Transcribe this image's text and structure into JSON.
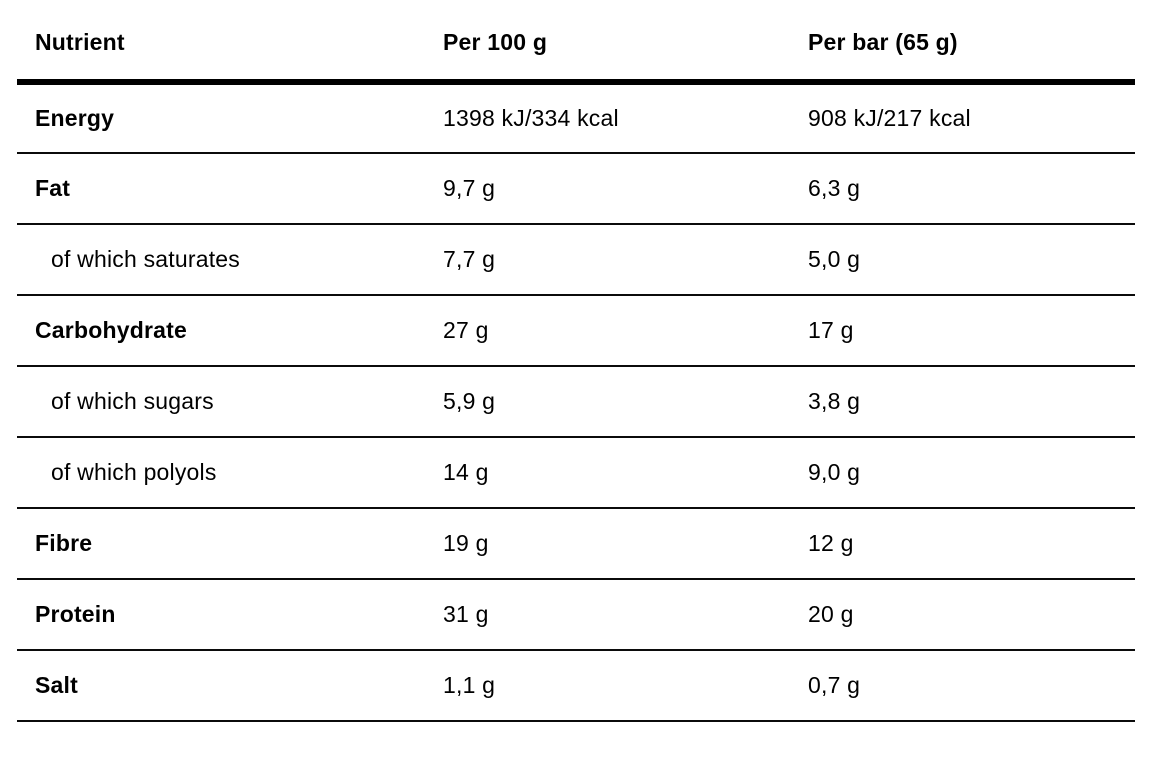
{
  "colors": {
    "background": "#ffffff",
    "text": "#000000",
    "header_rule": "#000000",
    "row_rule": "#0b0b0b"
  },
  "table": {
    "columns": [
      {
        "label": "Nutrient"
      },
      {
        "label": "Per 100 g"
      },
      {
        "label": "Per bar (65 g)"
      }
    ],
    "rows": [
      {
        "nutrient": "Energy",
        "per_100g": "1398 kJ/334 kcal",
        "per_bar": "908 kJ/217 kcal",
        "style": "bold"
      },
      {
        "nutrient": "Fat",
        "per_100g": "9,7 g",
        "per_bar": "6,3 g",
        "style": "bold"
      },
      {
        "nutrient": "of which saturates",
        "per_100g": "7,7 g",
        "per_bar": "5,0 g",
        "style": "sub"
      },
      {
        "nutrient": "Carbohydrate",
        "per_100g": "27 g",
        "per_bar": "17 g",
        "style": "bold"
      },
      {
        "nutrient": "of which sugars",
        "per_100g": "5,9 g",
        "per_bar": "3,8 g",
        "style": "sub"
      },
      {
        "nutrient": "of which polyols",
        "per_100g": "14 g",
        "per_bar": "9,0 g",
        "style": "sub"
      },
      {
        "nutrient": "Fibre",
        "per_100g": "19 g",
        "per_bar": "12 g",
        "style": "bold"
      },
      {
        "nutrient": "Protein",
        "per_100g": "31 g",
        "per_bar": "20 g",
        "style": "bold"
      },
      {
        "nutrient": "Salt",
        "per_100g": "1,1 g",
        "per_bar": "0,7 g",
        "style": "bold"
      }
    ]
  }
}
